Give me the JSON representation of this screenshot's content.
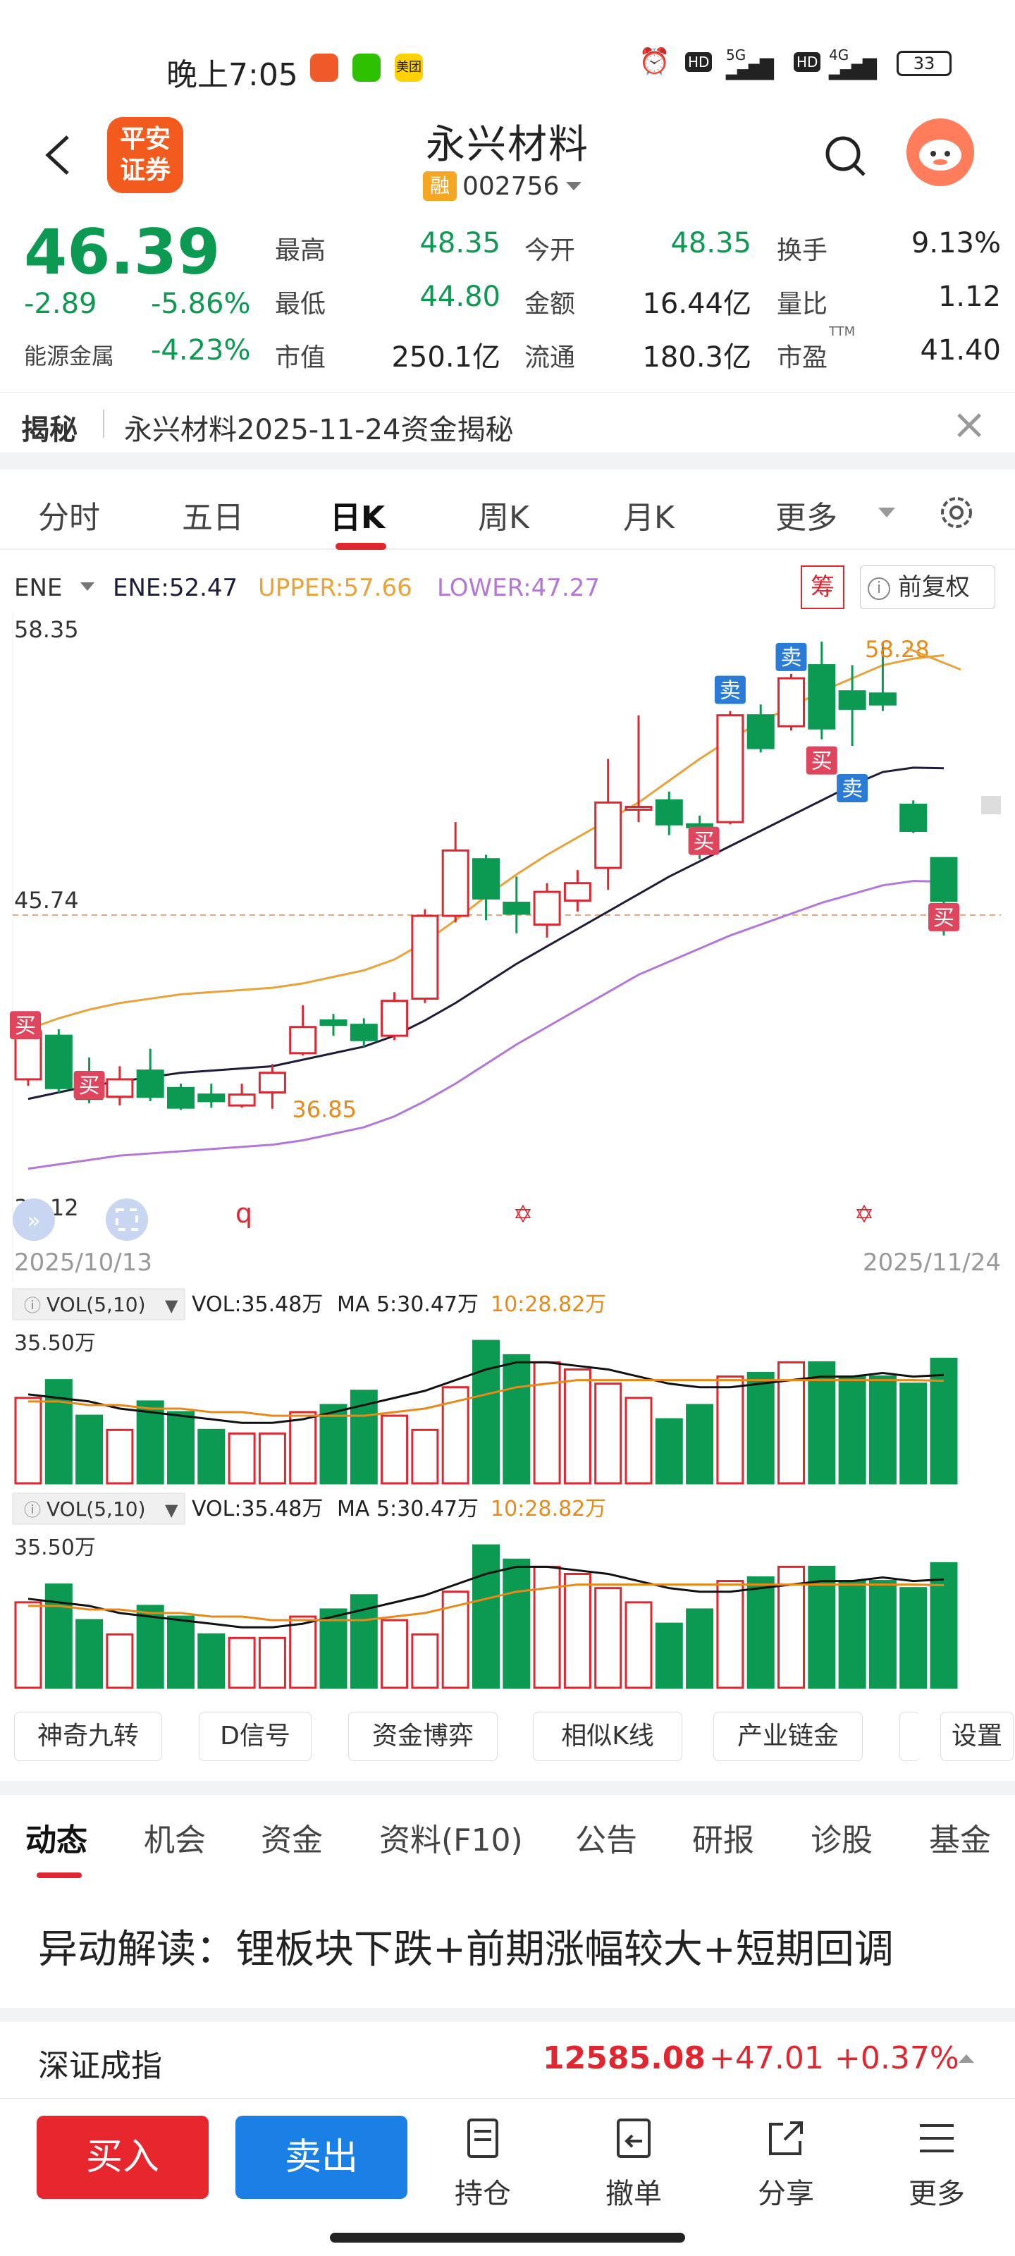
{
  "status_bar": {
    "time": "晚上7:05",
    "app_meituan": "美团",
    "hd1": "HD",
    "net1": "5G",
    "hd2": "HD",
    "net2": "4G",
    "battery": "33"
  },
  "header": {
    "broker_logo": "平安\n证券",
    "broker_line1": "平安",
    "broker_line2": "证券",
    "stock_name": "永兴材料",
    "margin_tag": "融",
    "stock_code": "002756"
  },
  "quote": {
    "price": "46.39",
    "change": "-2.89",
    "change_pct": "-5.86%",
    "sector": "能源金属",
    "sector_pct": "-4.23%",
    "fields": [
      {
        "label": "最高",
        "value": "48.35"
      },
      {
        "label": "今开",
        "value": "48.35"
      },
      {
        "label": "换手",
        "value": "9.13%"
      },
      {
        "label": "最低",
        "value": "44.80"
      },
      {
        "label": "金额",
        "value": "16.44亿"
      },
      {
        "label": "量比",
        "value": "1.12"
      },
      {
        "label": "市值",
        "value": "250.1亿"
      },
      {
        "label": "流通",
        "value": "180.3亿"
      },
      {
        "label": "市盈",
        "value": "41.40"
      }
    ],
    "ttm": "TTM"
  },
  "reveal": {
    "tag": "揭秘",
    "text": "永兴材料2025-11-24资金揭秘"
  },
  "kline_tabs": [
    "分时",
    "五日",
    "日K",
    "周K",
    "月K",
    "更多"
  ],
  "indicator": {
    "name": "ENE",
    "ene": "ENE:52.47",
    "upper": "UPPER:57.66",
    "lower": "LOWER:47.27",
    "chou": "筹",
    "fuquan": "前复权"
  },
  "chart_data": {
    "type": "candlestick",
    "y_max_label": "58.35",
    "y_mid_label": "45.74",
    "y_min_label": "33.12",
    "ylim": [
      33.12,
      58.35
    ],
    "date_start": "2025/10/13",
    "date_end": "2025/11/24",
    "high_annot": "58.28",
    "low_annot": "36.85",
    "candles": [
      {
        "o": 38.2,
        "c": 40.4,
        "h": 40.6,
        "l": 37.9
      },
      {
        "o": 40.2,
        "c": 37.8,
        "h": 40.5,
        "l": 37.6
      },
      {
        "o": 38.5,
        "c": 37.3,
        "h": 39.2,
        "l": 37.1
      },
      {
        "o": 37.4,
        "c": 38.2,
        "h": 38.8,
        "l": 37.0
      },
      {
        "o": 38.6,
        "c": 37.4,
        "h": 39.6,
        "l": 37.2
      },
      {
        "o": 37.8,
        "c": 36.9,
        "h": 38.0,
        "l": 36.8
      },
      {
        "o": 37.5,
        "c": 37.2,
        "h": 38.0,
        "l": 36.9
      },
      {
        "o": 37.0,
        "c": 37.5,
        "h": 38.0,
        "l": 36.9
      },
      {
        "o": 37.6,
        "c": 38.5,
        "h": 38.9,
        "l": 36.85
      },
      {
        "o": 39.4,
        "c": 40.6,
        "h": 41.6,
        "l": 39.3
      },
      {
        "o": 40.9,
        "c": 40.7,
        "h": 41.2,
        "l": 40.2
      },
      {
        "o": 40.7,
        "c": 40.0,
        "h": 41.0,
        "l": 39.7
      },
      {
        "o": 40.2,
        "c": 41.8,
        "h": 42.2,
        "l": 40.0
      },
      {
        "o": 41.9,
        "c": 45.7,
        "h": 46.0,
        "l": 41.7
      },
      {
        "o": 45.7,
        "c": 48.7,
        "h": 50.0,
        "l": 45.4
      },
      {
        "o": 48.3,
        "c": 46.5,
        "h": 48.5,
        "l": 45.5
      },
      {
        "o": 46.3,
        "c": 45.8,
        "h": 47.5,
        "l": 44.9
      },
      {
        "o": 45.3,
        "c": 46.8,
        "h": 47.2,
        "l": 44.7
      },
      {
        "o": 46.4,
        "c": 47.2,
        "h": 47.8,
        "l": 45.9
      },
      {
        "o": 47.9,
        "c": 50.9,
        "h": 52.9,
        "l": 46.9
      },
      {
        "o": 50.6,
        "c": 50.7,
        "h": 54.9,
        "l": 50.0
      },
      {
        "o": 51.0,
        "c": 49.9,
        "h": 51.4,
        "l": 49.4
      },
      {
        "o": 49.9,
        "c": 49.8,
        "h": 50.3,
        "l": 48.3
      },
      {
        "o": 50.0,
        "c": 54.9,
        "h": 55.1,
        "l": 49.9
      },
      {
        "o": 54.9,
        "c": 53.4,
        "h": 55.4,
        "l": 53.2
      },
      {
        "o": 54.4,
        "c": 56.6,
        "h": 56.8,
        "l": 54.2
      },
      {
        "o": 57.2,
        "c": 54.3,
        "h": 58.28,
        "l": 53.8
      },
      {
        "o": 56.0,
        "c": 55.2,
        "h": 57.2,
        "l": 53.5
      },
      {
        "o": 55.9,
        "c": 55.4,
        "h": 58.2,
        "l": 55.1
      },
      {
        "o": 50.8,
        "c": 49.6,
        "h": 51.0,
        "l": 49.5
      },
      {
        "o": 48.35,
        "c": 46.39,
        "h": 48.35,
        "l": 44.8
      }
    ],
    "ene_mid": [
      37.3,
      37.6,
      37.9,
      38.1,
      38.3,
      38.5,
      38.6,
      38.7,
      38.8,
      39.1,
      39.4,
      39.7,
      40.2,
      40.9,
      41.7,
      42.6,
      43.5,
      44.3,
      45.1,
      45.9,
      46.7,
      47.5,
      48.2,
      48.9,
      49.6,
      50.3,
      51.0,
      51.7,
      52.3,
      52.5,
      52.47
    ],
    "ene_upper": [
      40.5,
      41.0,
      41.4,
      41.7,
      41.9,
      42.1,
      42.2,
      42.3,
      42.4,
      42.6,
      42.9,
      43.2,
      43.7,
      44.5,
      45.5,
      46.6,
      47.6,
      48.5,
      49.3,
      50.1,
      50.9,
      51.9,
      52.9,
      53.8,
      54.6,
      55.3,
      56.0,
      56.6,
      57.2,
      57.5,
      57.66
    ],
    "ene_lower": [
      34.1,
      34.3,
      34.5,
      34.7,
      34.8,
      34.9,
      35.0,
      35.1,
      35.2,
      35.4,
      35.7,
      36.0,
      36.5,
      37.2,
      38.0,
      38.9,
      39.8,
      40.6,
      41.4,
      42.2,
      43.0,
      43.6,
      44.2,
      44.8,
      45.3,
      45.8,
      46.3,
      46.7,
      47.1,
      47.3,
      47.27
    ],
    "signals": [
      {
        "index": 0,
        "text": "买",
        "type": "buy"
      },
      {
        "index": 2,
        "text": "买",
        "type": "buy"
      },
      {
        "index": 22,
        "text": "买",
        "type": "buy"
      },
      {
        "index": 23,
        "text": "卖",
        "type": "sell"
      },
      {
        "index": 25,
        "text": "卖",
        "type": "sell"
      },
      {
        "index": 26,
        "text": "买",
        "type": "buy"
      },
      {
        "index": 27,
        "text": "卖",
        "type": "sell"
      },
      {
        "index": 30,
        "text": "买",
        "type": "buy"
      }
    ],
    "marker_q": "q"
  },
  "volume_panels": [
    {
      "title": "VOL(5,10)",
      "vol": "VOL:35.48万",
      "ma5": "MA 5:30.47万",
      "ma10": "10:28.82万",
      "ylabel": "35.50万"
    },
    {
      "title": "VOL(5,10)",
      "vol": "VOL:35.48万",
      "ma5": "MA 5:30.47万",
      "ma10": "10:28.82万",
      "ylabel": "35.50万"
    }
  ],
  "volumes": [
    24,
    29,
    19,
    15,
    23,
    20,
    15,
    14,
    14,
    20,
    22,
    26,
    19,
    15,
    27,
    40,
    36,
    34,
    32,
    28,
    24,
    18,
    22,
    30,
    31,
    34,
    34,
    30,
    30,
    28,
    35
  ],
  "vol_ma5": [
    25,
    24,
    23,
    21,
    20,
    19,
    18,
    17,
    17,
    18,
    20,
    22,
    24,
    26,
    29,
    32,
    34,
    34,
    33,
    32,
    30,
    28,
    27,
    27,
    28,
    29,
    30,
    30,
    31,
    30,
    30.47
  ],
  "vol_ma10": [
    23,
    23,
    22,
    22,
    21,
    21,
    20,
    20,
    19,
    19,
    19,
    19,
    20,
    21,
    23,
    25,
    27,
    28,
    29,
    29,
    29,
    29,
    29,
    29,
    29,
    29,
    29,
    29,
    29,
    29,
    28.82
  ],
  "features": [
    "神奇九转",
    "D信号",
    "资金博弈",
    "相似K线",
    "产业链金",
    "设置"
  ],
  "news_tabs": [
    "动态",
    "机会",
    "资金",
    "资料(F10)",
    "公告",
    "研报",
    "诊股",
    "基金"
  ],
  "news_headline": "异动解读：锂板块下跌+前期涨幅较大+短期回调",
  "index_row": {
    "name": "深证成指",
    "value": "12585.08",
    "change": "+47.01",
    "pct": "+0.37%"
  },
  "bottom_bar": {
    "buy": "买入",
    "sell": "卖出",
    "items": [
      "持仓",
      "撤单",
      "分享",
      "更多"
    ]
  },
  "colors": {
    "up": "#e0262f",
    "down": "#0c9a52",
    "upper": "#e8a33a",
    "lower": "#b277d9",
    "mid": "#1d1d3a",
    "buy_btn": "#e8262e",
    "sell_btn": "#1a80e6"
  }
}
